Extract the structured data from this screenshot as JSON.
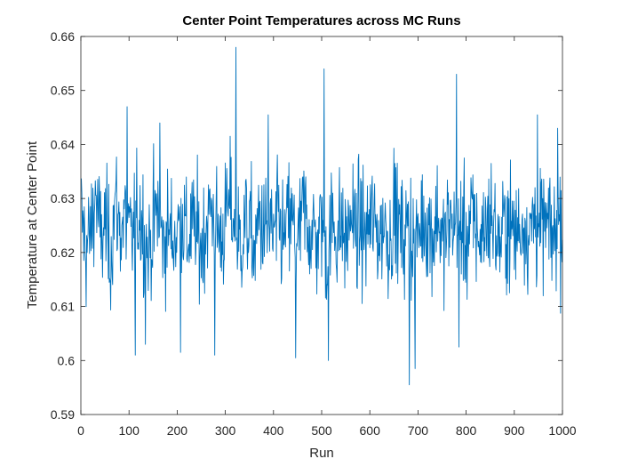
{
  "chart_data": {
    "type": "line",
    "title": "Center Point Temperatures across MC Runs",
    "xlabel": "Run",
    "ylabel": "Temperature at Center Point",
    "xlim": [
      0,
      1000
    ],
    "ylim": [
      0.59,
      0.66
    ],
    "xticks": [
      0,
      100,
      200,
      300,
      400,
      500,
      600,
      700,
      800,
      900,
      1000
    ],
    "xtick_labels": [
      "0",
      "100",
      "200",
      "300",
      "400",
      "500",
      "600",
      "700",
      "800",
      "900",
      "1000"
    ],
    "yticks": [
      0.59,
      0.6,
      0.61,
      0.62,
      0.63,
      0.64,
      0.65,
      0.66
    ],
    "ytick_labels": [
      "0.59",
      "0.6",
      "0.61",
      "0.62",
      "0.63",
      "0.64",
      "0.65",
      "0.66"
    ],
    "grid": false,
    "legend": false,
    "line_color": "#0072BD",
    "series": [
      {
        "x_start": 1,
        "x_step": 10,
        "values": [
          0.6265,
          0.6205,
          0.6238,
          0.6312,
          0.6221,
          0.6254,
          0.6189,
          0.6296,
          0.6241,
          0.6268,
          0.6225,
          0.6236,
          0.6279,
          0.6241,
          0.6199,
          0.6252,
          0.6283,
          0.6214,
          0.6245,
          0.6226,
          0.6241,
          0.6272,
          0.6218,
          0.6251,
          0.6234,
          0.6209,
          0.6256,
          0.6281,
          0.6247,
          0.6222,
          0.6265,
          0.6293,
          0.6238,
          0.6212,
          0.6255,
          0.6243,
          0.6198,
          0.6271,
          0.6234,
          0.6244,
          0.6228,
          0.6259,
          0.6216,
          0.6265,
          0.6247,
          0.6207,
          0.6283,
          0.6252,
          0.6238,
          0.6224,
          0.6261,
          0.6195,
          0.6257,
          0.6236,
          0.6249,
          0.6214,
          0.6278,
          0.6233,
          0.6251,
          0.6226,
          0.6262,
          0.6246,
          0.6231,
          0.6258,
          0.6219,
          0.6284,
          0.6241,
          0.6227,
          0.6256,
          0.6212,
          0.6234,
          0.6267,
          0.6249,
          0.6231,
          0.6278,
          0.6208,
          0.6245,
          0.6258,
          0.6236,
          0.6251,
          0.6221,
          0.6264,
          0.6239,
          0.6228,
          0.6252,
          0.6271,
          0.6234,
          0.6217,
          0.6257,
          0.6246,
          0.6236,
          0.6243,
          0.6262,
          0.6224,
          0.6273,
          0.6232,
          0.6254,
          0.6241,
          0.6228,
          0.6259
        ],
        "extremes": [
          {
            "x": 96,
            "y": 0.647
          },
          {
            "x": 113,
            "y": 0.601
          },
          {
            "x": 134,
            "y": 0.603
          },
          {
            "x": 164,
            "y": 0.644
          },
          {
            "x": 207,
            "y": 0.6015
          },
          {
            "x": 278,
            "y": 0.601
          },
          {
            "x": 322,
            "y": 0.658
          },
          {
            "x": 389,
            "y": 0.6455
          },
          {
            "x": 446,
            "y": 0.6005
          },
          {
            "x": 505,
            "y": 0.654
          },
          {
            "x": 514,
            "y": 0.6
          },
          {
            "x": 682,
            "y": 0.5955
          },
          {
            "x": 694,
            "y": 0.5985
          },
          {
            "x": 780,
            "y": 0.653
          },
          {
            "x": 785,
            "y": 0.6025
          },
          {
            "x": 948,
            "y": 0.6455
          },
          {
            "x": 990,
            "y": 0.643
          }
        ],
        "noise_std": 0.0085
      }
    ]
  }
}
